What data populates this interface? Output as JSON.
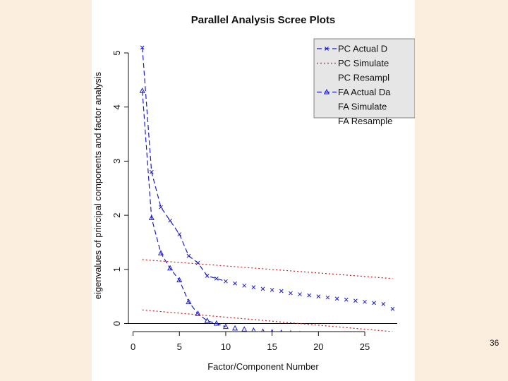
{
  "slide": {
    "page_number": "36"
  },
  "chart_data": {
    "type": "line",
    "title": "Parallel Analysis Scree Plots",
    "xlabel": "Factor/Component Number",
    "ylabel": "eigenvalues of principal components and factor analysis",
    "xlim": [
      -0.5,
      28.5
    ],
    "ylim": [
      -0.15,
      5.3
    ],
    "xticks": [
      0,
      5,
      10,
      15,
      20,
      25
    ],
    "yticks": [
      0,
      1,
      2,
      3,
      4,
      5
    ],
    "xtick_labels": [
      "0",
      "5",
      "10",
      "15",
      "20",
      "25"
    ],
    "ytick_labels": [
      "0",
      "1",
      "2",
      "3",
      "4",
      "5"
    ],
    "zero_line": true,
    "legend": {
      "placement": "top-right",
      "entries": [
        {
          "label": "PC  Actual D",
          "color": "#1a1acc",
          "line": "dashed",
          "marker": "x"
        },
        {
          "label": "PC  Simulate",
          "color": "#cc1a1a",
          "line": "dotted",
          "marker": ""
        },
        {
          "label": "PC  Resampl",
          "color": "",
          "line": "none",
          "marker": ""
        },
        {
          "label": "FA  Actual Da",
          "color": "#1a1acc",
          "line": "dashed",
          "marker": "triangle"
        },
        {
          "label": "FA  Simulate",
          "color": "",
          "line": "none",
          "marker": ""
        },
        {
          "label": "FA  Resample",
          "color": "",
          "line": "none",
          "marker": ""
        }
      ]
    },
    "series": [
      {
        "name": "PC  Actual D",
        "color": "#1a1acc",
        "line": "dashed",
        "marker": "x",
        "x": [
          1,
          2,
          3,
          4,
          5,
          6,
          7,
          8,
          9,
          10,
          11,
          12,
          13,
          14,
          15,
          16,
          17,
          18,
          19,
          20,
          21,
          22,
          23,
          24,
          25,
          26,
          27,
          28
        ],
        "y": [
          5.1,
          2.8,
          2.15,
          1.9,
          1.65,
          1.25,
          1.12,
          0.88,
          0.83,
          0.78,
          0.74,
          0.7,
          0.67,
          0.64,
          0.62,
          0.6,
          0.56,
          0.54,
          0.52,
          0.5,
          0.48,
          0.46,
          0.44,
          0.42,
          0.4,
          0.38,
          0.36,
          0.27
        ],
        "line_points": 10
      },
      {
        "name": "PC  Simulate",
        "color": "#cc1a1a",
        "line": "dotted",
        "marker": "",
        "x": [
          1,
          28
        ],
        "y": [
          1.18,
          0.83
        ],
        "line_points": 2
      },
      {
        "name": "FA  Actual Da",
        "color": "#1a1acc",
        "line": "dashed",
        "marker": "triangle",
        "x": [
          1,
          2,
          3,
          4,
          5,
          6,
          7,
          8,
          9,
          10,
          11,
          12,
          13,
          14,
          15,
          16,
          17,
          18,
          19,
          20,
          21,
          22,
          23,
          24,
          25,
          26,
          27,
          28
        ],
        "y": [
          4.3,
          1.95,
          1.3,
          1.02,
          0.8,
          0.4,
          0.18,
          0.05,
          0.0,
          -0.06,
          -0.09,
          -0.11,
          -0.13,
          -0.15,
          -0.16,
          -0.17,
          -0.18,
          -0.19,
          -0.2,
          -0.21,
          -0.22,
          -0.23,
          -0.24,
          -0.25,
          -0.26,
          -0.27,
          -0.28,
          -0.29
        ],
        "line_points": 10
      },
      {
        "name": "FA  Simulate",
        "color": "#cc1a1a",
        "line": "dotted",
        "marker": "",
        "x": [
          1,
          28
        ],
        "y": [
          0.25,
          -0.15
        ],
        "line_points": 2
      }
    ]
  }
}
